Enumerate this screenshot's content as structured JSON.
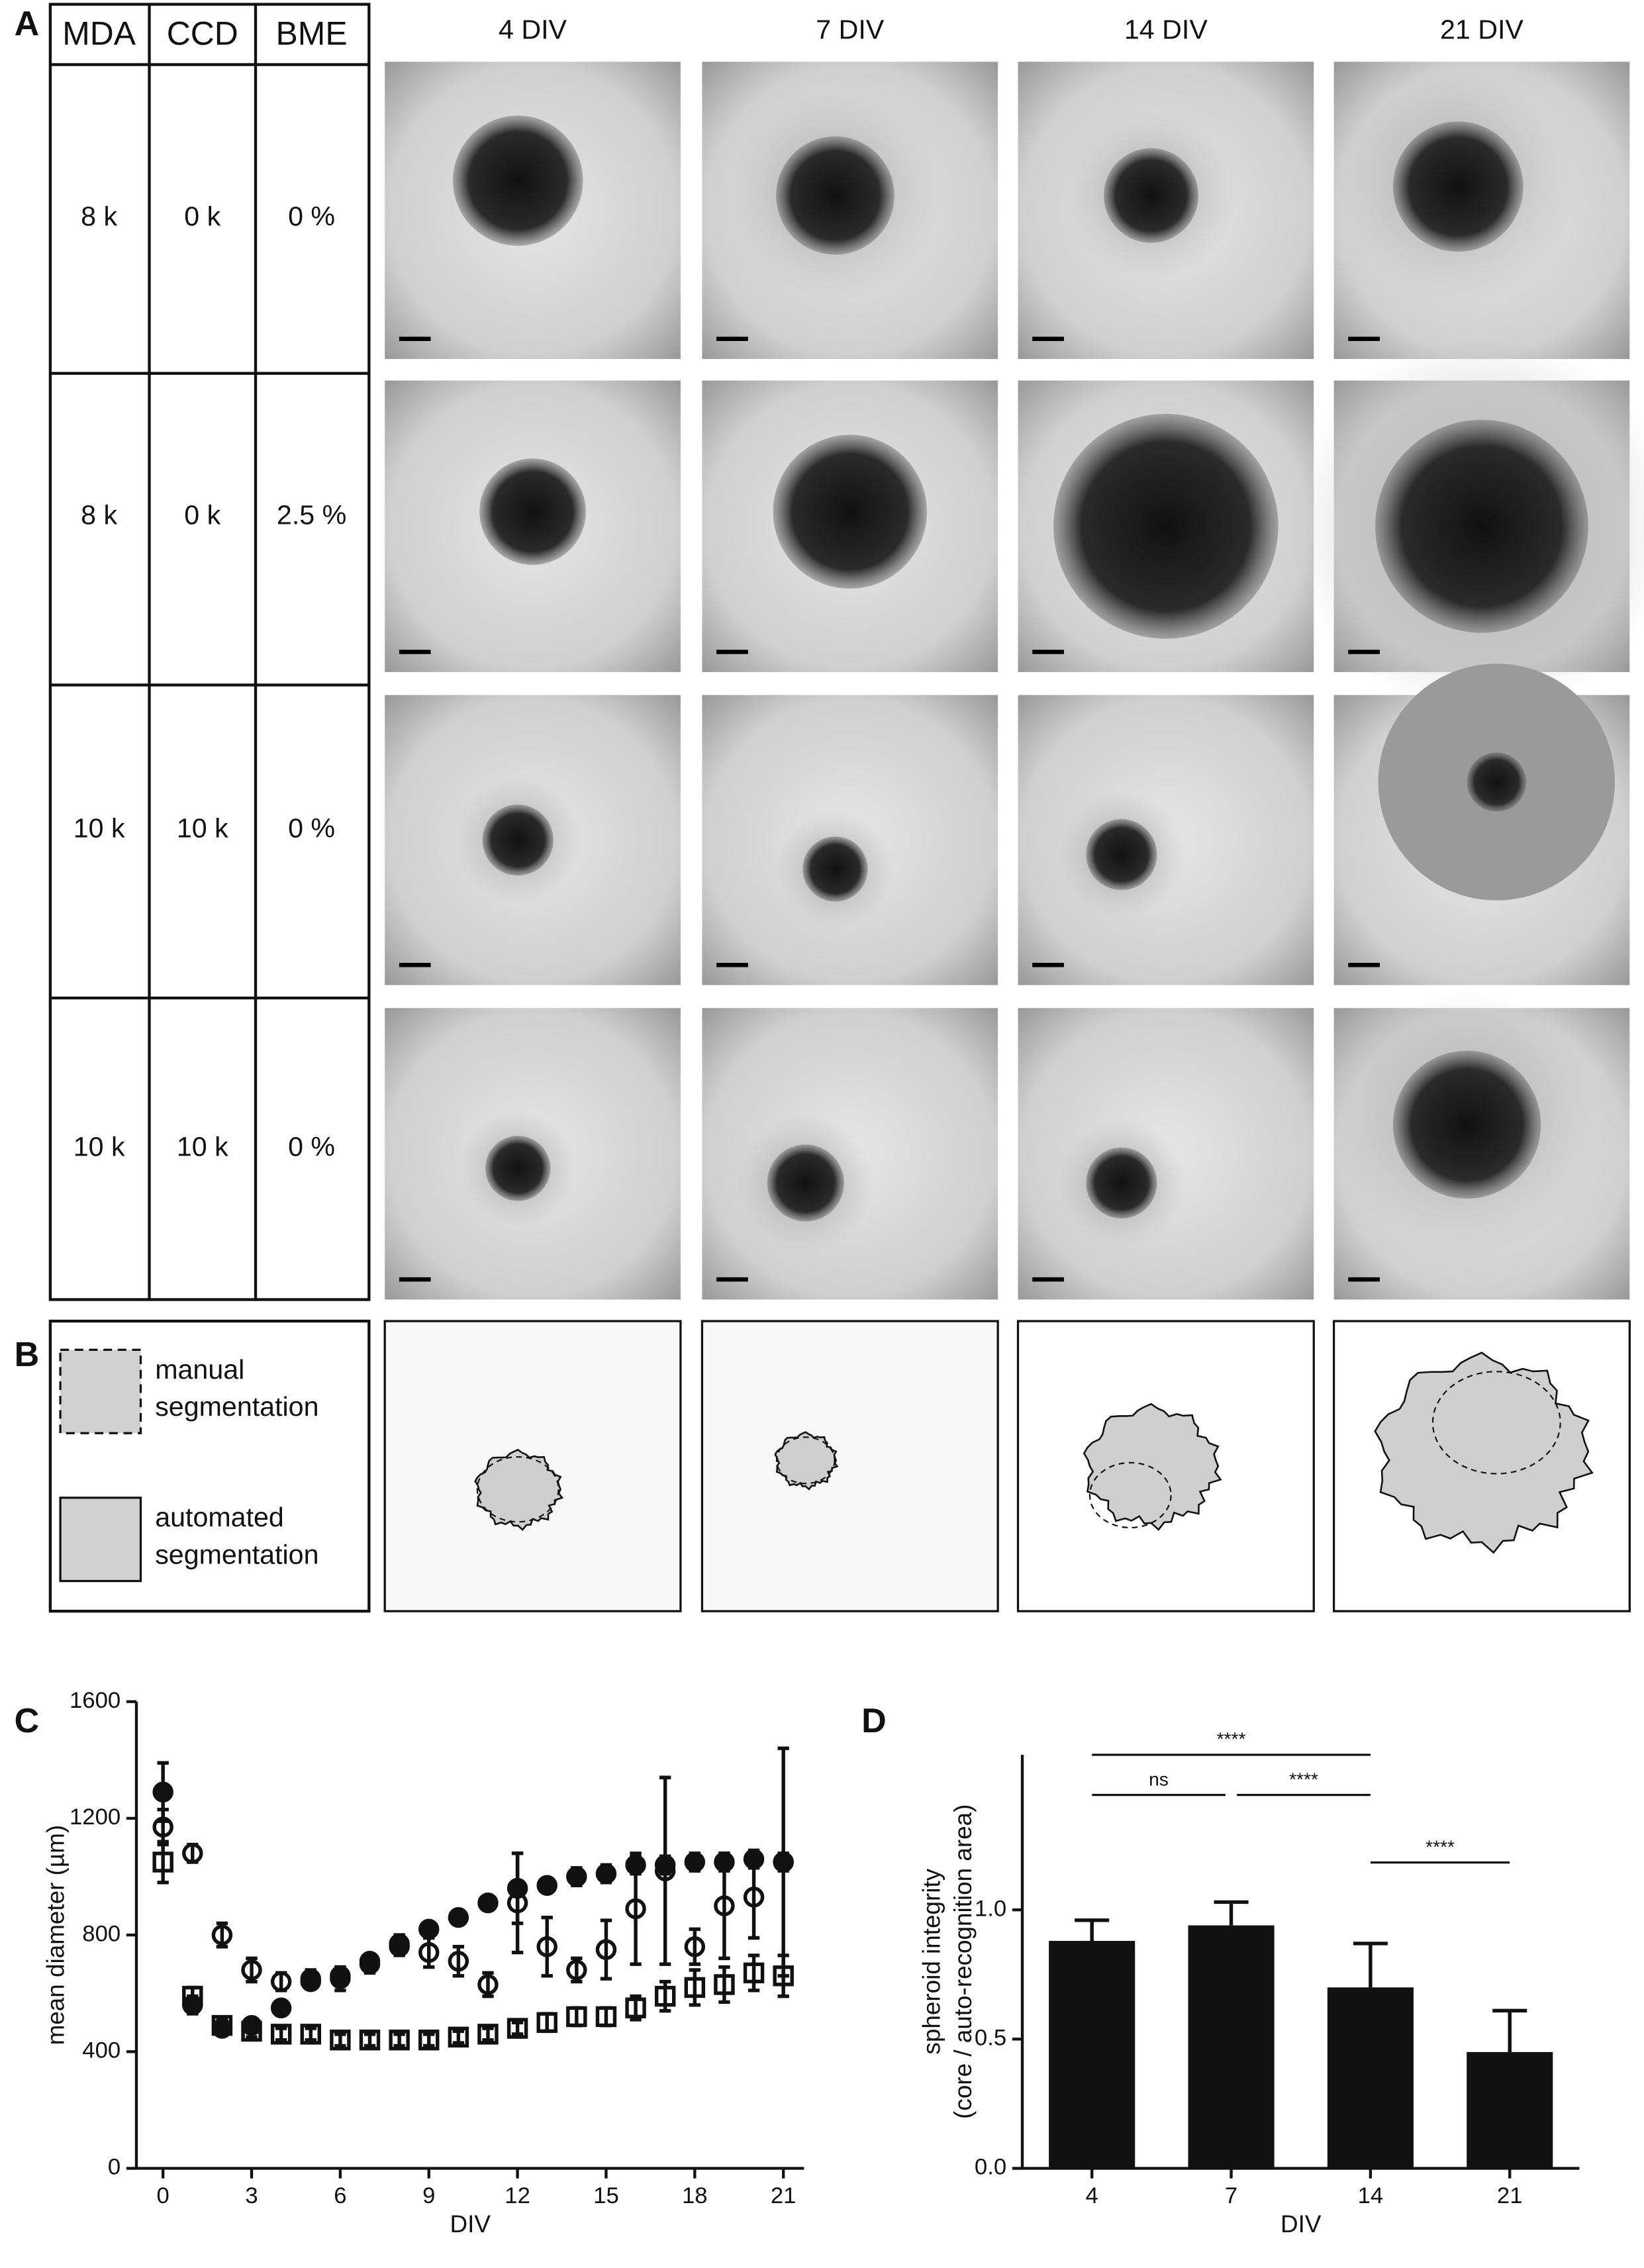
{
  "panel_labels": [
    "A",
    "B",
    "C",
    "D"
  ],
  "table": {
    "header": [
      "MDA",
      "CCD",
      "BME"
    ],
    "rows": [
      [
        "8 k",
        "0 k",
        "0 %"
      ],
      [
        "8 k",
        "0 k",
        "2.5 %"
      ],
      [
        "10 k",
        "10 k",
        "0 %"
      ],
      [
        "10 k",
        "10 k",
        "0 %"
      ]
    ]
  },
  "column_titles": [
    "4 DIV",
    "7 DIV",
    "14 DIV",
    "21 DIV"
  ],
  "legend": [
    {
      "lines": [
        "manual",
        "segmentation"
      ]
    },
    {
      "lines": [
        "automated",
        "segmentation"
      ]
    }
  ],
  "chart_data": [
    {
      "type": "scatter",
      "x_label": "DIV",
      "y_label": "mean diameter (µm)",
      "x": [
        0,
        1,
        2,
        3,
        4,
        5,
        6,
        7,
        8,
        9,
        10,
        11,
        12,
        13,
        14,
        15,
        16,
        17,
        18,
        19,
        20,
        21
      ],
      "xlim": [
        -0.9,
        21.7
      ],
      "xticks": [
        0,
        3,
        6,
        9,
        12,
        15,
        18,
        21
      ],
      "ylim": [
        0,
        1600
      ],
      "yticks": [
        0,
        400,
        800,
        1200,
        1600
      ],
      "series": [
        {
          "marker": "filled-circle",
          "color": "#111111",
          "values": [
            1290,
            560,
            480,
            490,
            550,
            640,
            660,
            710,
            770,
            820,
            860,
            910,
            960,
            970,
            1000,
            1010,
            1040,
            1040,
            1050,
            1050,
            1060,
            1050
          ],
          "errors": [
            100,
            30,
            20,
            20,
            20,
            20,
            30,
            20,
            30,
            20,
            20,
            20,
            120,
            20,
            30,
            30,
            30,
            30,
            30,
            30,
            30,
            30
          ]
        },
        {
          "marker": "open-circle",
          "color": "#111111",
          "values": [
            1170,
            1080,
            800,
            680,
            640,
            650,
            650,
            700,
            760,
            740,
            710,
            630,
            910,
            760,
            680,
            750,
            890,
            1020,
            760,
            900,
            930,
            1050
          ],
          "errors": [
            60,
            30,
            40,
            40,
            30,
            30,
            40,
            30,
            30,
            50,
            50,
            40,
            170,
            100,
            40,
            100,
            190,
            320,
            60,
            180,
            140,
            390
          ]
        },
        {
          "marker": "open-square",
          "color": "#111111",
          "values": [
            1050,
            590,
            490,
            470,
            460,
            460,
            440,
            440,
            440,
            440,
            450,
            460,
            480,
            500,
            520,
            520,
            550,
            590,
            620,
            630,
            670,
            660
          ],
          "errors": [
            70,
            30,
            20,
            20,
            20,
            20,
            20,
            20,
            20,
            20,
            20,
            20,
            20,
            30,
            30,
            30,
            40,
            50,
            60,
            60,
            60,
            70
          ]
        }
      ]
    },
    {
      "type": "bar",
      "x_label": "DIV",
      "y_label": [
        "spheroid integrity",
        "(core / auto-recognition area)"
      ],
      "categories": [
        "4",
        "7",
        "14",
        "21"
      ],
      "values": [
        0.88,
        0.94,
        0.7,
        0.45
      ],
      "errors": [
        0.08,
        0.09,
        0.17,
        0.16
      ],
      "color": "#111111",
      "ylim": [
        0,
        1.6
      ],
      "yticks": [
        {
          "value": 0,
          "label": "0.0"
        },
        0.5,
        {
          "value": 1,
          "label": "1.0"
        }
      ],
      "annotations": [
        {
          "label": "****",
          "categories": [
            "4",
            "14"
          ]
        },
        {
          "label": "ns",
          "categories": [
            "4",
            "7"
          ]
        },
        {
          "label": "****",
          "categories": [
            "7",
            "14"
          ]
        },
        {
          "label": "****",
          "categories": [
            "14",
            "21"
          ]
        }
      ]
    }
  ]
}
